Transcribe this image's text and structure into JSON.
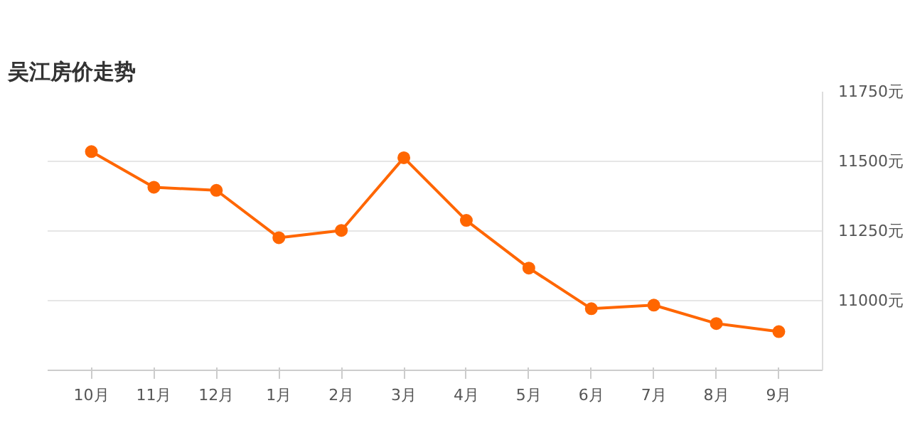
{
  "chart_data": {
    "type": "line",
    "title": "吴江房价走势",
    "categories": [
      "10月",
      "11月",
      "12月",
      "1月",
      "2月",
      "3月",
      "4月",
      "5月",
      "6月",
      "7月",
      "8月",
      "9月"
    ],
    "series": [
      {
        "color": "#ff6600",
        "values": [
          11535,
          11407,
          11396,
          11226,
          11252,
          11513,
          11288,
          11117,
          10971,
          10984,
          10918,
          10889
        ]
      }
    ],
    "ylim": [
      10750,
      11750
    ],
    "yticks": [
      {
        "value": 10750,
        "label": null
      },
      {
        "value": 11000,
        "label": "11000元"
      },
      {
        "value": 11250,
        "label": "11250元"
      },
      {
        "value": 11500,
        "label": "11500元"
      },
      {
        "value": 11750,
        "label": "11750元"
      }
    ],
    "grid": "y",
    "marker": "circle",
    "line_style": "solid"
  }
}
